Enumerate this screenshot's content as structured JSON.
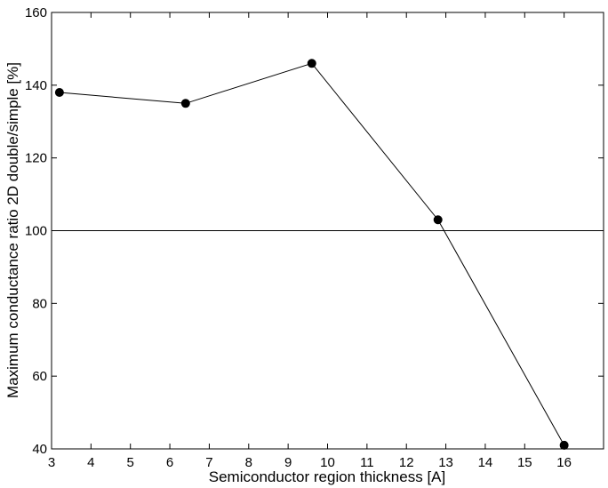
{
  "chart_data": {
    "type": "line",
    "x_label": "Semiconductor region thickness [A]",
    "y_label": "Maximum conductance ratio 2D double/simple [%]",
    "x": [
      3.2,
      6.4,
      9.6,
      12.8,
      16
    ],
    "series": [
      {
        "color": "#000000",
        "values": [
          138,
          135,
          146,
          103,
          41
        ]
      }
    ],
    "reference_line": 100,
    "xlim": [
      3,
      17
    ],
    "xticks": [
      3,
      4,
      5,
      6,
      7,
      8,
      9,
      10,
      11,
      12,
      13,
      14,
      15,
      16
    ],
    "ylim": [
      40,
      160
    ],
    "yticks": [
      40,
      60,
      80,
      100,
      120,
      140,
      160
    ],
    "grid": false
  }
}
